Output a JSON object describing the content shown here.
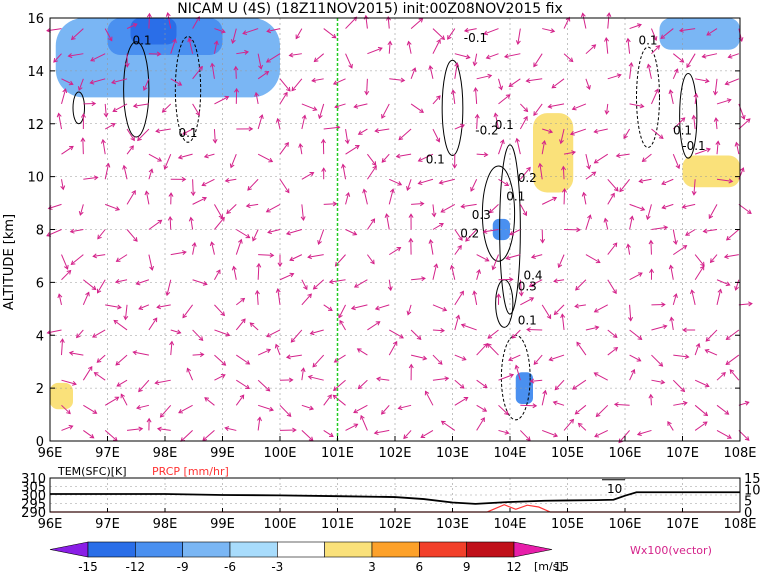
{
  "chart_data": [
    {
      "type": "heatmap",
      "title": "NICAM U (4S) (18Z11NOV2015) init:00Z08NOV2015 fix",
      "xlabel": "",
      "ylabel": "ALTITUDE [km]",
      "x_ticks": [
        "96E",
        "97E",
        "98E",
        "99E",
        "100E",
        "101E",
        "102E",
        "103E",
        "104E",
        "105E",
        "106E",
        "107E",
        "108E"
      ],
      "y_ticks": [
        "0",
        "2",
        "4",
        "6",
        "8",
        "10",
        "12",
        "14",
        "16"
      ],
      "xlim": [
        96,
        108
      ],
      "ylim": [
        0,
        16
      ],
      "grid": true,
      "marker_line_lon": 101,
      "contour_labels": [
        {
          "text": "0.1",
          "lon": 97.6,
          "alt": 15.0
        },
        {
          "text": "0.1",
          "lon": 98.4,
          "alt": 11.5
        },
        {
          "text": "0.1",
          "lon": 106.4,
          "alt": 15.0
        },
        {
          "text": "-0.1",
          "lon": 103.4,
          "alt": 15.1
        },
        {
          "text": "0.1",
          "lon": 102.7,
          "alt": 10.5
        },
        {
          "text": "-0.2",
          "lon": 103.6,
          "alt": 11.6
        },
        {
          "text": "0.1",
          "lon": 103.9,
          "alt": 11.8
        },
        {
          "text": "0.2",
          "lon": 104.3,
          "alt": 9.8
        },
        {
          "text": "0.1",
          "lon": 104.1,
          "alt": 9.1
        },
        {
          "text": "0.3",
          "lon": 103.5,
          "alt": 8.4
        },
        {
          "text": "0.2",
          "lon": 103.3,
          "alt": 7.7
        },
        {
          "text": "0.4",
          "lon": 104.4,
          "alt": 6.1
        },
        {
          "text": "0.3",
          "lon": 104.3,
          "alt": 5.7
        },
        {
          "text": "0.1",
          "lon": 104.3,
          "alt": 4.4
        },
        {
          "text": "0.1",
          "lon": 107.0,
          "alt": 11.6
        },
        {
          "text": "-0.1",
          "lon": 107.2,
          "alt": 11.0
        }
      ],
      "shaded_regions": [
        {
          "level": -9,
          "lon": [
            97.0,
            99.0
          ],
          "alt": [
            14.6,
            16.0
          ]
        },
        {
          "level": -12,
          "lon": [
            97.4,
            98.2
          ],
          "alt": [
            15.0,
            16.0
          ]
        },
        {
          "level": -9,
          "lon": [
            103.7,
            104.0
          ],
          "alt": [
            7.6,
            8.4
          ]
        },
        {
          "level": -9,
          "lon": [
            104.1,
            104.4
          ],
          "alt": [
            1.4,
            2.6
          ]
        },
        {
          "level": 3,
          "lon": [
            104.4,
            105.1
          ],
          "alt": [
            9.4,
            12.4
          ]
        },
        {
          "level": 3,
          "lon": [
            107.0,
            108.0
          ],
          "alt": [
            9.6,
            10.8
          ]
        },
        {
          "level": 3,
          "lon": [
            96.0,
            96.4
          ],
          "alt": [
            1.2,
            2.2
          ]
        },
        {
          "level": -6,
          "lon": [
            96.1,
            100.0
          ],
          "alt": [
            13.0,
            16.0
          ]
        },
        {
          "level": -6,
          "lon": [
            106.6,
            108.0
          ],
          "alt": [
            14.8,
            16.0
          ]
        }
      ]
    },
    {
      "type": "line",
      "title": "",
      "x_ticks": [
        "96E",
        "97E",
        "98E",
        "99E",
        "100E",
        "101E",
        "102E",
        "103E",
        "104E",
        "105E",
        "106E",
        "107E",
        "108E"
      ],
      "y_ticks_left": [
        "290",
        "295",
        "300",
        "305",
        "310"
      ],
      "y_ticks_right": [
        "0",
        "5",
        "10",
        "15"
      ],
      "ylim_left": [
        290,
        310
      ],
      "ylim_right": [
        0,
        15
      ],
      "series": [
        {
          "name": "TEM(SFC)[K]",
          "color": "#000000",
          "x": [
            96.0,
            98.0,
            99.0,
            100.0,
            101.0,
            102.0,
            102.5,
            103.0,
            103.4,
            104.0,
            104.6,
            105.0,
            105.5,
            105.8,
            106.0,
            106.2,
            107.0,
            108.0
          ],
          "y": [
            300.6,
            300.6,
            300.0,
            299.8,
            299.3,
            298.8,
            297.6,
            295.6,
            294.8,
            295.9,
            296.6,
            296.8,
            297.0,
            297.2,
            299.6,
            301.6,
            301.6,
            301.6
          ]
        },
        {
          "name": "PRCP [mm/hr]",
          "color": "#ff3333",
          "x": [
            96.0,
            103.6,
            103.9,
            104.1,
            104.3,
            104.5,
            104.7,
            108.0
          ],
          "y": [
            0,
            0,
            3.2,
            1.2,
            3.0,
            2.2,
            0,
            0
          ]
        }
      ],
      "annotation": "10"
    }
  ],
  "colorbar": {
    "labels": [
      "-15",
      "-12",
      "-9",
      "-6",
      "-3",
      "3",
      "6",
      "9",
      "12",
      "15"
    ],
    "unit": "[m/s]",
    "colors": [
      "#8a1ee6",
      "#2a6ee8",
      "#4a90f0",
      "#7ab6f4",
      "#a8dcfc",
      "#ffffff",
      "#fae17a",
      "#fda12a",
      "#f2402a",
      "#c0101a",
      "#e71eaa"
    ]
  },
  "vector_label": "Wx100(vector)",
  "colors": {
    "vector": "#d4228a",
    "marker_line": "#22cc22",
    "prcp": "#ff3333"
  }
}
